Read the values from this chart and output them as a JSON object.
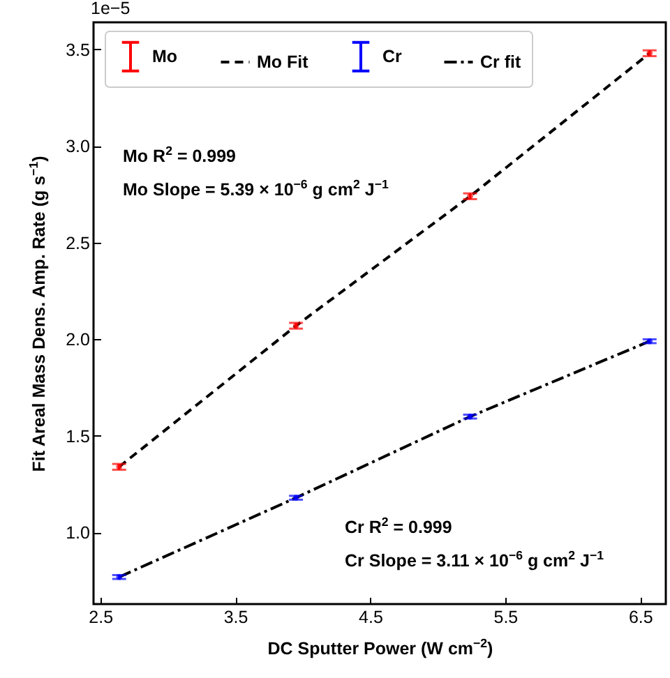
{
  "chart_data": {
    "type": "scatter",
    "xlabel": "DC Sputter Power (W cm$^{−2}$)",
    "ylabel": "Fit Areal Mass Dens. Amp. Rate (g s$^{−1}$)",
    "xlim": [
      2.45,
      6.69
    ],
    "xticks": [
      2.5,
      3.5,
      4.5,
      5.5,
      6.5
    ],
    "ylim": [
      0.63,
      3.64
    ],
    "yticks": [
      {
        "value": 1,
        "label": "1.0"
      },
      1.5,
      {
        "value": 2,
        "label": "2.0"
      },
      2.5,
      {
        "value": 3,
        "label": "3.0"
      },
      3.5
    ],
    "legend": "top left",
    "grid": false,
    "x": [
      2.64,
      3.95,
      5.24,
      6.57
    ],
    "series": [
      {
        "name": "Mo",
        "color": "#ff0000",
        "values": [
          1.34,
          2.07,
          2.74,
          3.48
        ],
        "errors": [
          0.015,
          0.015,
          0.015,
          0.015
        ]
      },
      {
        "name": "Mo Fit",
        "type": "line",
        "line_style": "dashed",
        "color": "#000000",
        "values": [
          1.34,
          2.07,
          2.74,
          3.48
        ]
      },
      {
        "name": "Cr",
        "color": "#0000ff",
        "values": [
          0.77,
          1.18,
          1.6,
          1.99
        ],
        "errors": [
          0.01,
          0.01,
          0.01,
          0.01
        ]
      },
      {
        "name": "Cr fit",
        "type": "line",
        "line_style": "dashdot",
        "color": "#000000",
        "values": [
          0.77,
          1.18,
          1.6,
          1.99
        ]
      }
    ],
    "annotations": [
      "1e−5",
      "Mo R$^{2}$ = 0.999",
      "Mo Slope = 5.39 × 10$^{−6}$ g cm$^{2}$ J$^{−1}$",
      "Cr R$^{2}$ = 0.999",
      "Cr Slope = 3.11 × 10$^{−6}$ g cm$^{2}$ J$^{−1}$"
    ]
  }
}
